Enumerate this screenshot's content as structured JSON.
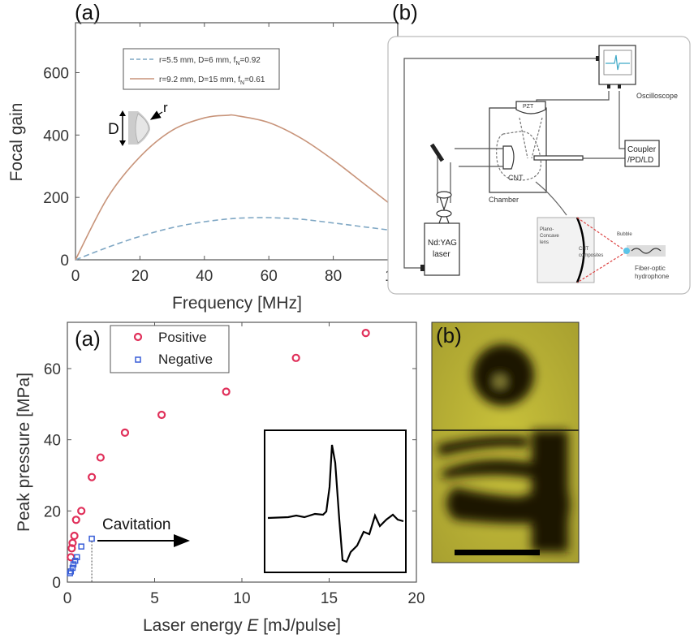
{
  "chart_data": [
    {
      "type": "line",
      "panel_label": "(a)",
      "xlabel": "Frequency [MHz]",
      "ylabel": "Focal gain",
      "xlim": [
        0,
        100
      ],
      "ylim": [
        0,
        760
      ],
      "xticks": [
        "0",
        "20",
        "40",
        "60",
        "80",
        "100"
      ],
      "yticks": [
        "0",
        "200",
        "400",
        "600"
      ],
      "legend_position": "top-center",
      "series": [
        {
          "name": "r=5.5 mm, D=6 mm, f",
          "name_sub": "N",
          "name_suffix": "=0.92",
          "style": "dashed",
          "color": "#7fa7c4",
          "x": [
            0,
            10,
            20,
            30,
            40,
            50,
            60,
            70,
            80,
            90,
            100
          ],
          "y": [
            0,
            40,
            75,
            103,
            122,
            133,
            135,
            130,
            118,
            105,
            92
          ]
        },
        {
          "name": "r=9.2 mm, D=15 mm, f",
          "name_sub": "N",
          "name_suffix": "=0.61",
          "style": "solid",
          "color": "#c8947a",
          "x": [
            0,
            10,
            20,
            30,
            40,
            47,
            50,
            60,
            70,
            80,
            90,
            100
          ],
          "y": [
            0,
            200,
            330,
            415,
            455,
            463,
            462,
            440,
            390,
            320,
            240,
            160
          ]
        }
      ],
      "annotations": {
        "diameter": "D",
        "radius": "r"
      }
    },
    {
      "type": "scatter",
      "panel_label": "(a)",
      "xlabel": "Laser energy ",
      "xlabel_italic": "E",
      "xlabel_suffix": " [mJ/pulse]",
      "ylabel": "Peak pressure [MPa]",
      "xlim": [
        0,
        20
      ],
      "ylim": [
        0,
        73
      ],
      "xticks": [
        "0",
        "5",
        "10",
        "15",
        "20"
      ],
      "yticks": [
        "0",
        "20",
        "40",
        "60"
      ],
      "legend_position": "top-left",
      "series": [
        {
          "name": "Positive",
          "marker": "circle",
          "color": "#e0305a",
          "x": [
            17.1,
            13.1,
            9.1,
            5.4,
            3.3,
            1.9,
            1.4,
            0.8,
            0.5,
            0.4,
            0.3,
            0.25,
            0.2
          ],
          "y": [
            70,
            63,
            53.5,
            47,
            42,
            35,
            29.5,
            20,
            17.5,
            13,
            11,
            9.5,
            7
          ]
        },
        {
          "name": "Negative",
          "marker": "square",
          "color": "#3a5fd8",
          "x": [
            1.4,
            0.8,
            0.55,
            0.45,
            0.35,
            0.3,
            0.2,
            0.15
          ],
          "y": [
            12.2,
            10,
            7,
            6,
            5,
            4,
            3,
            2.5
          ]
        }
      ],
      "annotations": {
        "cavitation": "Cavitation",
        "cavitation_threshold_x": 1.4
      }
    }
  ],
  "diagram": {
    "panel_label": "(b)",
    "labels": {
      "oscilloscope": "Oscilloscope",
      "pzt": "PZT",
      "cnt": "CNT",
      "chamber": "Chamber",
      "coupler_1": "Coupler",
      "coupler_2": "/PD/LD",
      "laser_1": "Nd:YAG",
      "laser_2": "laser",
      "lens_1": "Plano-",
      "lens_2": "Concave",
      "lens_3": "lens",
      "cnt_comp_1": "CNT",
      "cnt_comp_2": "composites",
      "bubble": "Bubble",
      "hydrophone_1": "Fiber-optic",
      "hydrophone_2": "hydrophone"
    }
  },
  "photo": {
    "panel_label": "(b)"
  }
}
